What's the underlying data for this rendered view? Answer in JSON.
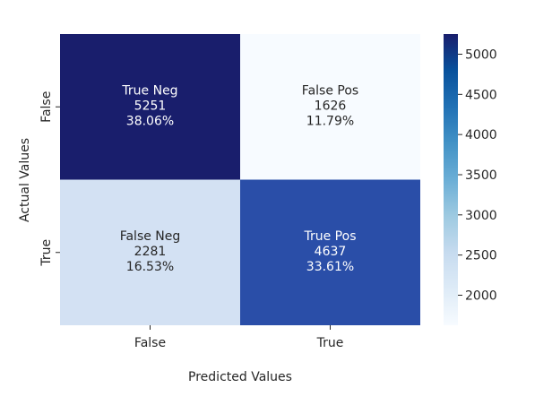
{
  "chart_data": {
    "type": "heatmap",
    "title": "",
    "xlabel": "Predicted Values",
    "ylabel": "Actual Values",
    "x_categories": [
      "False",
      "True"
    ],
    "y_categories": [
      "False",
      "True"
    ],
    "cells": [
      [
        {
          "label": "True Neg",
          "value": 5251,
          "percent": "38.06%"
        },
        {
          "label": "False Pos",
          "value": 1626,
          "percent": "11.79%"
        }
      ],
      [
        {
          "label": "False Neg",
          "value": 2281,
          "percent": "16.53%"
        },
        {
          "label": "True Pos",
          "value": 4637,
          "percent": "33.61%"
        }
      ]
    ],
    "colorbar": {
      "colormap": "Blues",
      "vmin": 1626,
      "vmax": 5251,
      "ticks": [
        2000,
        2500,
        3000,
        3500,
        4000,
        4500,
        5000
      ],
      "low_color": "#f7fbff",
      "high_color": "#08306b"
    },
    "colors": {
      "true_neg": "#191e6c",
      "false_pos": "#f7fbff",
      "false_neg": "#d3e1f3",
      "true_pos": "#2a4ea8"
    }
  }
}
